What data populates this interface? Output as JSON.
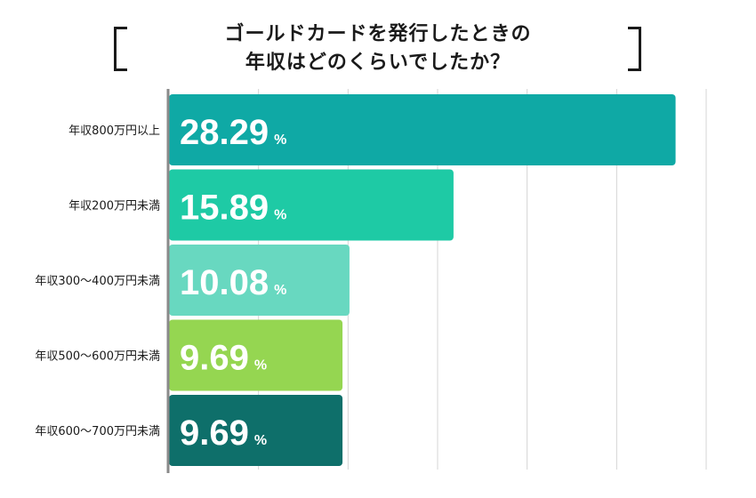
{
  "chart_data": {
    "type": "bar",
    "orientation": "horizontal",
    "title_lines": [
      "ゴールドカードを発行したときの",
      "年収はどのくらいでしたか？"
    ],
    "categories": [
      "年収800万円以上",
      "年収200万円未満",
      "年収300〜400万円未満",
      "年収500〜600万円未満",
      "年収600〜700万円未満"
    ],
    "values": [
      28.29,
      15.89,
      10.08,
      9.69,
      9.69
    ],
    "value_labels": [
      "28.29",
      "15.89",
      "10.08",
      "9.69",
      "9.69"
    ],
    "unit": "%",
    "xlim": [
      0,
      30
    ],
    "grid": true,
    "colors": [
      "#0fa9a5",
      "#1ecaa5",
      "#68d8c0",
      "#95d651",
      "#0e6f6a"
    ]
  }
}
